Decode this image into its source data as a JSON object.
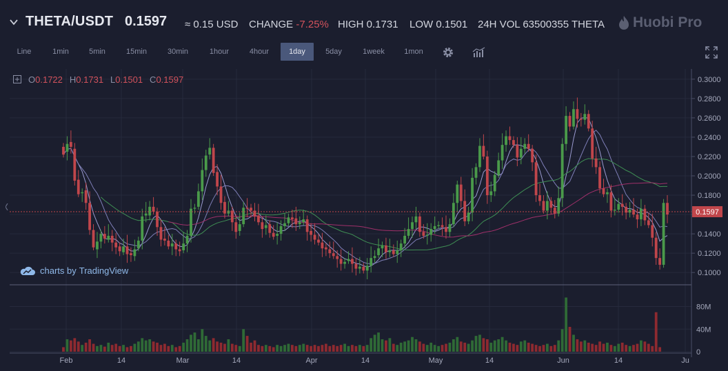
{
  "header": {
    "pair": "THETA/USDT",
    "price": "0.1597",
    "usd_value": "≈ 0.15 USD",
    "change_label": "CHANGE",
    "change_value": "-7.25%",
    "high_label": "HIGH",
    "high_value": "0.1731",
    "low_label": "LOW",
    "low_value": "0.1501",
    "vol_label": "24H VOL",
    "vol_value": "63500355 THETA",
    "logo_text": "Huobi Pro"
  },
  "toolbar": {
    "intervals": [
      "Line",
      "1min",
      "5min",
      "15min",
      "30min",
      "1hour",
      "4hour",
      "1day",
      "5day",
      "1week",
      "1mon"
    ],
    "active": "1day"
  },
  "legend": {
    "o_label": "O",
    "o_value": "0.1722",
    "h_label": "H",
    "h_value": "0.1731",
    "l_label": "L",
    "l_value": "0.1501",
    "c_label": "C",
    "c_value": "0.1597"
  },
  "branding": {
    "text1": "charts by",
    "text2": "TradingView"
  },
  "colors": {
    "up": "#4a9a4a",
    "down": "#c0464b",
    "ma_light": "#8f8fc4",
    "ma_green": "#3f8f54",
    "ma_magenta": "#a0306a",
    "background": "#1b1e2e"
  },
  "price_axis": {
    "ticks": [
      "0.3000",
      "0.2800",
      "0.2600",
      "0.2400",
      "0.2200",
      "0.2000",
      "0.1800",
      "0.1600",
      "0.1400",
      "0.1200",
      "0.1000"
    ],
    "last_price_label": "0.1597"
  },
  "volume_axis": {
    "ticks": [
      "80M",
      "40M",
      "0"
    ]
  },
  "time_axis": {
    "ticks": [
      "Feb",
      "14",
      "Mar",
      "14",
      "Apr",
      "14",
      "May",
      "14",
      "Jun",
      "14",
      "Ju"
    ]
  },
  "chart_data": {
    "type": "candlestick",
    "ylim": [
      0.093,
      0.307
    ],
    "volume_ylim": [
      0,
      110
    ],
    "closes": [
      0.222,
      0.233,
      0.23,
      0.195,
      0.181,
      0.183,
      0.172,
      0.144,
      0.126,
      0.132,
      0.14,
      0.135,
      0.138,
      0.131,
      0.126,
      0.122,
      0.127,
      0.119,
      0.118,
      0.124,
      0.133,
      0.158,
      0.161,
      0.168,
      0.163,
      0.147,
      0.134,
      0.133,
      0.127,
      0.13,
      0.124,
      0.122,
      0.13,
      0.138,
      0.166,
      0.167,
      0.184,
      0.206,
      0.221,
      0.229,
      0.203,
      0.189,
      0.172,
      0.161,
      0.164,
      0.152,
      0.142,
      0.15,
      0.167,
      0.166,
      0.164,
      0.158,
      0.152,
      0.145,
      0.149,
      0.141,
      0.137,
      0.14,
      0.148,
      0.151,
      0.157,
      0.155,
      0.15,
      0.152,
      0.155,
      0.142,
      0.139,
      0.134,
      0.131,
      0.125,
      0.124,
      0.12,
      0.117,
      0.114,
      0.109,
      0.111,
      0.114,
      0.109,
      0.104,
      0.106,
      0.102,
      0.107,
      0.115,
      0.117,
      0.125,
      0.128,
      0.121,
      0.123,
      0.119,
      0.123,
      0.13,
      0.138,
      0.145,
      0.152,
      0.158,
      0.142,
      0.138,
      0.139,
      0.145,
      0.148,
      0.149,
      0.147,
      0.142,
      0.15,
      0.172,
      0.191,
      0.174,
      0.153,
      0.162,
      0.198,
      0.209,
      0.231,
      0.22,
      0.18,
      0.184,
      0.201,
      0.216,
      0.232,
      0.241,
      0.237,
      0.232,
      0.219,
      0.228,
      0.233,
      0.228,
      0.214,
      0.18,
      0.174,
      0.164,
      0.174,
      0.167,
      0.161,
      0.177,
      0.233,
      0.262,
      0.251,
      0.269,
      0.259,
      0.258,
      0.264,
      0.249,
      0.218,
      0.209,
      0.187,
      0.181,
      0.183,
      0.164,
      0.165,
      0.171,
      0.168,
      0.162,
      0.165,
      0.16,
      0.155,
      0.166,
      0.154,
      0.149,
      0.136,
      0.115,
      0.108,
      0.172,
      0.16
    ],
    "opens": [
      0.23,
      0.225,
      0.235,
      0.228,
      0.196,
      0.182,
      0.185,
      0.172,
      0.144,
      0.124,
      0.132,
      0.14,
      0.134,
      0.138,
      0.131,
      0.127,
      0.121,
      0.127,
      0.12,
      0.117,
      0.125,
      0.133,
      0.159,
      0.159,
      0.168,
      0.163,
      0.147,
      0.135,
      0.133,
      0.127,
      0.13,
      0.124,
      0.123,
      0.13,
      0.138,
      0.166,
      0.168,
      0.184,
      0.206,
      0.222,
      0.229,
      0.204,
      0.189,
      0.173,
      0.161,
      0.164,
      0.152,
      0.143,
      0.15,
      0.167,
      0.167,
      0.164,
      0.159,
      0.152,
      0.146,
      0.15,
      0.141,
      0.138,
      0.14,
      0.148,
      0.151,
      0.157,
      0.156,
      0.15,
      0.152,
      0.155,
      0.143,
      0.139,
      0.134,
      0.131,
      0.126,
      0.124,
      0.12,
      0.117,
      0.114,
      0.109,
      0.112,
      0.114,
      0.109,
      0.104,
      0.106,
      0.102,
      0.107,
      0.115,
      0.118,
      0.125,
      0.128,
      0.121,
      0.123,
      0.119,
      0.123,
      0.13,
      0.138,
      0.145,
      0.152,
      0.158,
      0.142,
      0.138,
      0.139,
      0.145,
      0.148,
      0.149,
      0.147,
      0.142,
      0.15,
      0.172,
      0.191,
      0.174,
      0.153,
      0.162,
      0.198,
      0.209,
      0.231,
      0.22,
      0.18,
      0.184,
      0.201,
      0.216,
      0.232,
      0.241,
      0.237,
      0.232,
      0.219,
      0.228,
      0.233,
      0.228,
      0.214,
      0.18,
      0.174,
      0.164,
      0.174,
      0.167,
      0.161,
      0.177,
      0.233,
      0.262,
      0.251,
      0.269,
      0.259,
      0.258,
      0.264,
      0.249,
      0.218,
      0.209,
      0.187,
      0.181,
      0.183,
      0.164,
      0.165,
      0.171,
      0.168,
      0.162,
      0.165,
      0.16,
      0.155,
      0.166,
      0.154,
      0.149,
      0.136,
      0.115,
      0.108,
      0.172
    ],
    "volumes": [
      8,
      22,
      20,
      24,
      18,
      12,
      16,
      22,
      14,
      10,
      12,
      9,
      16,
      12,
      14,
      10,
      12,
      8,
      10,
      14,
      18,
      24,
      20,
      22,
      18,
      16,
      12,
      14,
      10,
      12,
      8,
      10,
      16,
      22,
      30,
      34,
      22,
      40,
      28,
      20,
      24,
      18,
      16,
      14,
      22,
      14,
      12,
      10,
      40,
      28,
      16,
      20,
      12,
      10,
      12,
      10,
      8,
      12,
      10,
      12,
      14,
      12,
      10,
      12,
      14,
      12,
      10,
      12,
      10,
      12,
      14,
      10,
      12,
      10,
      12,
      14,
      10,
      12,
      10,
      12,
      10,
      12,
      24,
      30,
      34,
      22,
      20,
      24,
      14,
      12,
      16,
      18,
      20,
      26,
      22,
      18,
      14,
      12,
      16,
      12,
      10,
      12,
      14,
      16,
      22,
      26,
      18,
      16,
      14,
      20,
      28,
      30,
      24,
      22,
      16,
      20,
      22,
      26,
      20,
      16,
      14,
      12,
      18,
      20,
      16,
      14,
      12,
      10,
      12,
      14,
      10,
      12,
      20,
      40,
      96,
      44,
      30,
      22,
      18,
      20,
      16,
      14,
      12,
      18,
      14,
      16,
      12,
      10,
      14,
      16,
      12,
      10,
      12,
      14,
      20,
      18,
      14,
      10,
      70,
      8
    ]
  }
}
